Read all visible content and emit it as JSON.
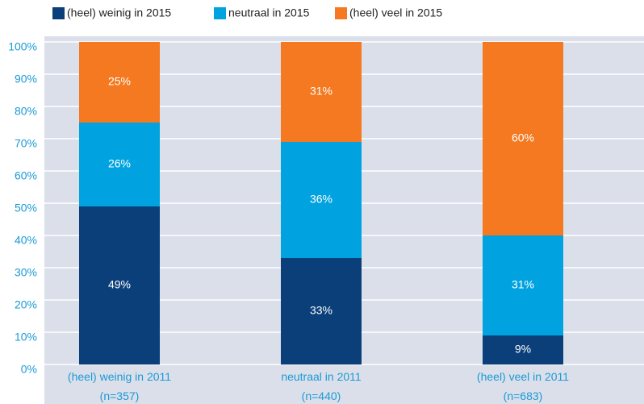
{
  "chart_data": {
    "type": "stacked_bar",
    "categories": [
      "(heel) weinig in 2011\n(n=357)",
      "neutraal in 2011\n(n=440)",
      "(heel) veel in 2011\n(n=683)"
    ],
    "series": [
      {
        "name": "(heel) weinig in 2015",
        "color": "#0b3f7a",
        "values": [
          49,
          33,
          9
        ],
        "value_labels": [
          "49%",
          "33%",
          "9%"
        ]
      },
      {
        "name": "neutraal in 2015",
        "color": "#00a3e0",
        "values": [
          26,
          36,
          31
        ],
        "value_labels": [
          "26%",
          "36%",
          "31%"
        ]
      },
      {
        "name": "(heel) veel in 2015",
        "color": "#f47920",
        "values": [
          25,
          31,
          60
        ],
        "value_labels": [
          "25%",
          "31%",
          "60%"
        ]
      }
    ],
    "ylim": [
      0,
      100
    ],
    "yticks": [
      {
        "value": 0,
        "label": "0%"
      },
      {
        "value": 10,
        "label": "10%"
      },
      {
        "value": 20,
        "label": "20%"
      },
      {
        "value": 30,
        "label": "30%"
      },
      {
        "value": 40,
        "label": "40%"
      },
      {
        "value": 50,
        "label": "50%"
      },
      {
        "value": 60,
        "label": "60%"
      },
      {
        "value": 70,
        "label": "70%"
      },
      {
        "value": 80,
        "label": "80%"
      },
      {
        "value": 90,
        "label": "90%"
      },
      {
        "value": 100,
        "label": "100%"
      }
    ],
    "grid": true,
    "legend": "top"
  }
}
